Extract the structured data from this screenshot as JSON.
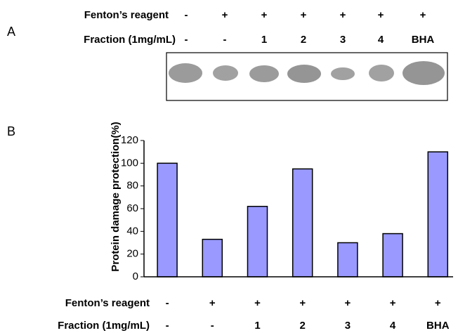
{
  "panel_a": {
    "label": "A",
    "rows": [
      {
        "name": "Fenton’s reagent",
        "cells": [
          "-",
          "+",
          "+",
          "+",
          "+",
          "+",
          "+"
        ]
      },
      {
        "name": "Fraction (1mg/mL)",
        "cells": [
          "-",
          "-",
          "1",
          "2",
          "3",
          "4",
          "BHA"
        ]
      }
    ]
  },
  "panel_b_label": "B",
  "chart_data": {
    "type": "bar",
    "y_label": "Protein damage protection(%)",
    "fenton_row": {
      "name": "Fenton’s reagent",
      "values": [
        "-",
        "+",
        "+",
        "+",
        "+",
        "+",
        "+"
      ]
    },
    "x_header": "Fraction (1mg/mL)",
    "categories": [
      "-",
      "-",
      "1",
      "2",
      "3",
      "4",
      "BHA"
    ],
    "values": [
      100,
      33,
      62,
      95,
      30,
      38,
      110
    ],
    "color": "#9999ff",
    "ylim": [
      0,
      120
    ],
    "yticks": [
      0,
      20,
      40,
      60,
      80,
      100,
      120
    ],
    "grid": false
  }
}
